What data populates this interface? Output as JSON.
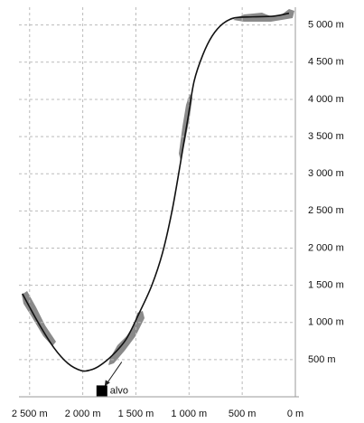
{
  "chart_data": {
    "type": "line",
    "x": [
      2568,
      2420,
      2270,
      2140,
      2015,
      1930,
      1845,
      1720,
      1590,
      1463,
      1350,
      1250,
      1160,
      1080,
      1010,
      952,
      870,
      782,
      680,
      570,
      400,
      200,
      60
    ],
    "values": [
      1387,
      1000,
      657,
      450,
      353,
      360,
      414,
      560,
      779,
      1144,
      1500,
      1934,
      2500,
      3151,
      3750,
      4246,
      4600,
      4854,
      5020,
      5097,
      5110,
      5120,
      5158
    ],
    "color": "#111111",
    "xlim": [
      2600,
      0
    ],
    "ylim": [
      0,
      5300
    ],
    "xticks": [
      {
        "value": 2500,
        "label": "2 500 m"
      },
      {
        "value": 2000,
        "label": "2 000 m"
      },
      {
        "value": 1500,
        "label": "1 500 m"
      },
      {
        "value": 1000,
        "label": "1 000 m"
      },
      {
        "value": 500,
        "label": "500 m"
      },
      {
        "value": 0,
        "label": "0 m"
      }
    ],
    "yticks": [
      {
        "value": 500,
        "label": "500 m"
      },
      {
        "value": 1000,
        "label": "1 000 m"
      },
      {
        "value": 1500,
        "label": "1 500 m"
      },
      {
        "value": 2000,
        "label": "2 000 m"
      },
      {
        "value": 2500,
        "label": "2 500 m"
      },
      {
        "value": 3000,
        "label": "3 000 m"
      },
      {
        "value": 3500,
        "label": "3 500 m"
      },
      {
        "value": 4000,
        "label": "4 000 m"
      },
      {
        "value": 4500,
        "label": "4 500 m"
      },
      {
        "value": 5000,
        "label": "5 000 m"
      }
    ],
    "grid": true,
    "target": {
      "label": "alvo",
      "x": 1820,
      "y": 80
    }
  }
}
